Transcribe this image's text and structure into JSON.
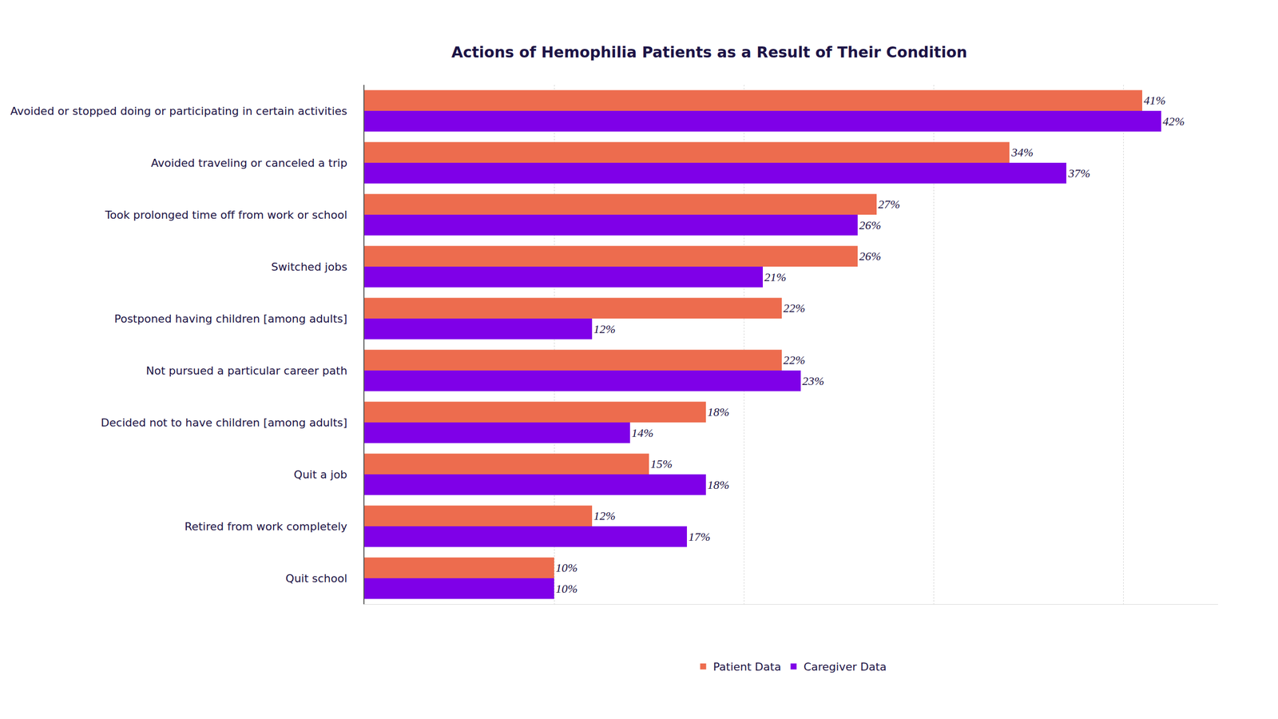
{
  "chart_data": {
    "type": "bar",
    "title": "Actions of Hemophilia Patients as a Result of Their Condition",
    "orientation": "horizontal",
    "categories": [
      "Avoided or stopped doing or participating in certain activities",
      "Avoided traveling or canceled a trip",
      "Took prolonged time off from work or school",
      "Switched jobs",
      "Postponed having children [among adults]",
      "Not pursued a particular career path",
      "Decided not to have children [among adults]",
      "Quit a job",
      "Retired from work completely",
      "Quit school"
    ],
    "series": [
      {
        "name": "Patient Data",
        "color": "#ED6C4E",
        "values": [
          41,
          34,
          27,
          26,
          22,
          22,
          18,
          15,
          12,
          10
        ],
        "value_labels": [
          "41%",
          "34%",
          "27%",
          "26%",
          "22%",
          "22%",
          "18%",
          "15%",
          "12%",
          "10%"
        ]
      },
      {
        "name": "Caregiver Data",
        "color": "#7F00E8",
        "values": [
          42,
          37,
          26,
          21,
          12,
          23,
          14,
          18,
          17,
          10
        ],
        "value_labels": [
          "42%",
          "37%",
          "26%",
          "21%",
          "12%",
          "23%",
          "14%",
          "18%",
          "17%",
          "10%"
        ]
      }
    ],
    "xlim": [
      0,
      45
    ],
    "xticks": [
      0,
      10,
      20,
      30,
      40
    ],
    "grid": true,
    "tick_labels": "y",
    "data_labels": true,
    "legend": "bottom"
  }
}
